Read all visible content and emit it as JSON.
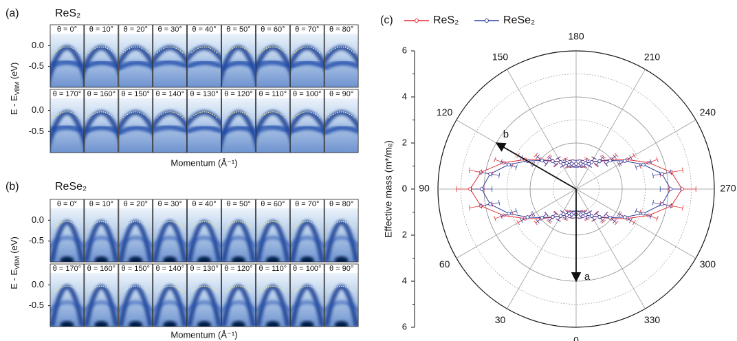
{
  "panels": [
    {
      "label": "(a)",
      "title": "ReS₂",
      "ylabel": {
        "main": "E - E",
        "sub": "VBM",
        "unit": " (eV)"
      },
      "xlabel": "Momentum (Å⁻¹)",
      "ylim": [
        -1.0,
        0.5
      ],
      "yticks": [
        {
          "value": 0,
          "label": "0.0"
        },
        {
          "value": -0.5,
          "label": "-0.5"
        }
      ],
      "rows": [
        [
          "θ = 0°",
          "θ = 10°",
          "θ = 20°",
          "θ = 30°",
          "θ = 40°",
          "θ = 50°",
          "θ = 60°",
          "θ = 70°",
          "θ = 80°"
        ],
        [
          "θ = 170°",
          "θ = 160°",
          "θ = 150°",
          "θ = 140°",
          "θ = 130°",
          "θ = 120°",
          "θ = 110°",
          "θ = 100°",
          "θ = 90°"
        ]
      ]
    },
    {
      "label": "(b)",
      "title": "ReSe₂",
      "ylabel": {
        "main": "E - E",
        "sub": "VBM",
        "unit": " (eV)"
      },
      "xlabel": "Momentum (Å⁻¹)",
      "ylim": [
        -1.0,
        0.5
      ],
      "yticks": [
        {
          "value": 0,
          "label": "0.0"
        },
        {
          "value": -0.5,
          "label": "-0.5"
        }
      ],
      "rows": [
        [
          "θ = 0°",
          "θ = 10°",
          "θ = 20°",
          "θ = 30°",
          "θ = 40°",
          "θ = 50°",
          "θ = 60°",
          "θ = 70°",
          "θ = 80°"
        ],
        [
          "θ = 170°",
          "θ = 160°",
          "θ = 150°",
          "θ = 140°",
          "θ = 130°",
          "θ = 120°",
          "θ = 110°",
          "θ = 100°",
          "θ = 90°"
        ]
      ]
    }
  ],
  "chart_data": {
    "type": "polar",
    "label": "(c)",
    "ylabel": "Effective mass (m*/mₑ)",
    "rlim": [
      0,
      6
    ],
    "rticks": [
      0,
      2,
      4,
      6
    ],
    "thetaticks": [
      0,
      30,
      60,
      90,
      120,
      150,
      180,
      210,
      240,
      270,
      300,
      330
    ],
    "theta": [
      0,
      10,
      20,
      30,
      40,
      50,
      60,
      70,
      80,
      90,
      100,
      110,
      120,
      130,
      140,
      150,
      160,
      170,
      180,
      190,
      200,
      210,
      220,
      230,
      240,
      250,
      260,
      270,
      280,
      290,
      300,
      310,
      320,
      330,
      340,
      350
    ],
    "series": [
      {
        "name": "ReS₂",
        "color": "#e3262e",
        "values": [
          1.1,
          1.13,
          1.21,
          1.36,
          1.6,
          1.99,
          2.56,
          3.35,
          4.2,
          4.6,
          4.2,
          3.35,
          2.56,
          1.99,
          1.6,
          1.36,
          1.21,
          1.13,
          1.1,
          1.13,
          1.21,
          1.36,
          1.6,
          1.99,
          2.56,
          3.35,
          4.2,
          4.6,
          4.2,
          3.35,
          2.56,
          1.99,
          1.6,
          1.36,
          1.21,
          1.13
        ],
        "errors": [
          0.15,
          0.15,
          0.2,
          0.2,
          0.25,
          0.3,
          0.35,
          0.4,
          0.5,
          0.6,
          0.5,
          0.4,
          0.35,
          0.3,
          0.25,
          0.2,
          0.2,
          0.15,
          0.15,
          0.15,
          0.2,
          0.2,
          0.25,
          0.3,
          0.35,
          0.4,
          0.5,
          0.6,
          0.5,
          0.4,
          0.35,
          0.3,
          0.25,
          0.2,
          0.2,
          0.15
        ]
      },
      {
        "name": "ReSe₂",
        "color": "#2f3f9e",
        "values": [
          1.1,
          1.12,
          1.2,
          1.35,
          1.58,
          1.93,
          2.44,
          3.11,
          3.79,
          4.1,
          3.79,
          3.11,
          2.44,
          1.93,
          1.58,
          1.35,
          1.2,
          1.12,
          1.1,
          1.12,
          1.2,
          1.35,
          1.58,
          1.93,
          2.44,
          3.11,
          3.79,
          4.1,
          3.79,
          3.11,
          2.44,
          1.93,
          1.58,
          1.35,
          1.2,
          1.12
        ],
        "errors": [
          0.15,
          0.15,
          0.15,
          0.2,
          0.2,
          0.25,
          0.3,
          0.35,
          0.4,
          0.45,
          0.4,
          0.35,
          0.3,
          0.25,
          0.2,
          0.2,
          0.15,
          0.15,
          0.15,
          0.15,
          0.15,
          0.2,
          0.2,
          0.25,
          0.3,
          0.35,
          0.4,
          0.45,
          0.4,
          0.35,
          0.3,
          0.25,
          0.2,
          0.2,
          0.15,
          0.15
        ]
      }
    ],
    "annotations": [
      "a",
      "b"
    ]
  }
}
